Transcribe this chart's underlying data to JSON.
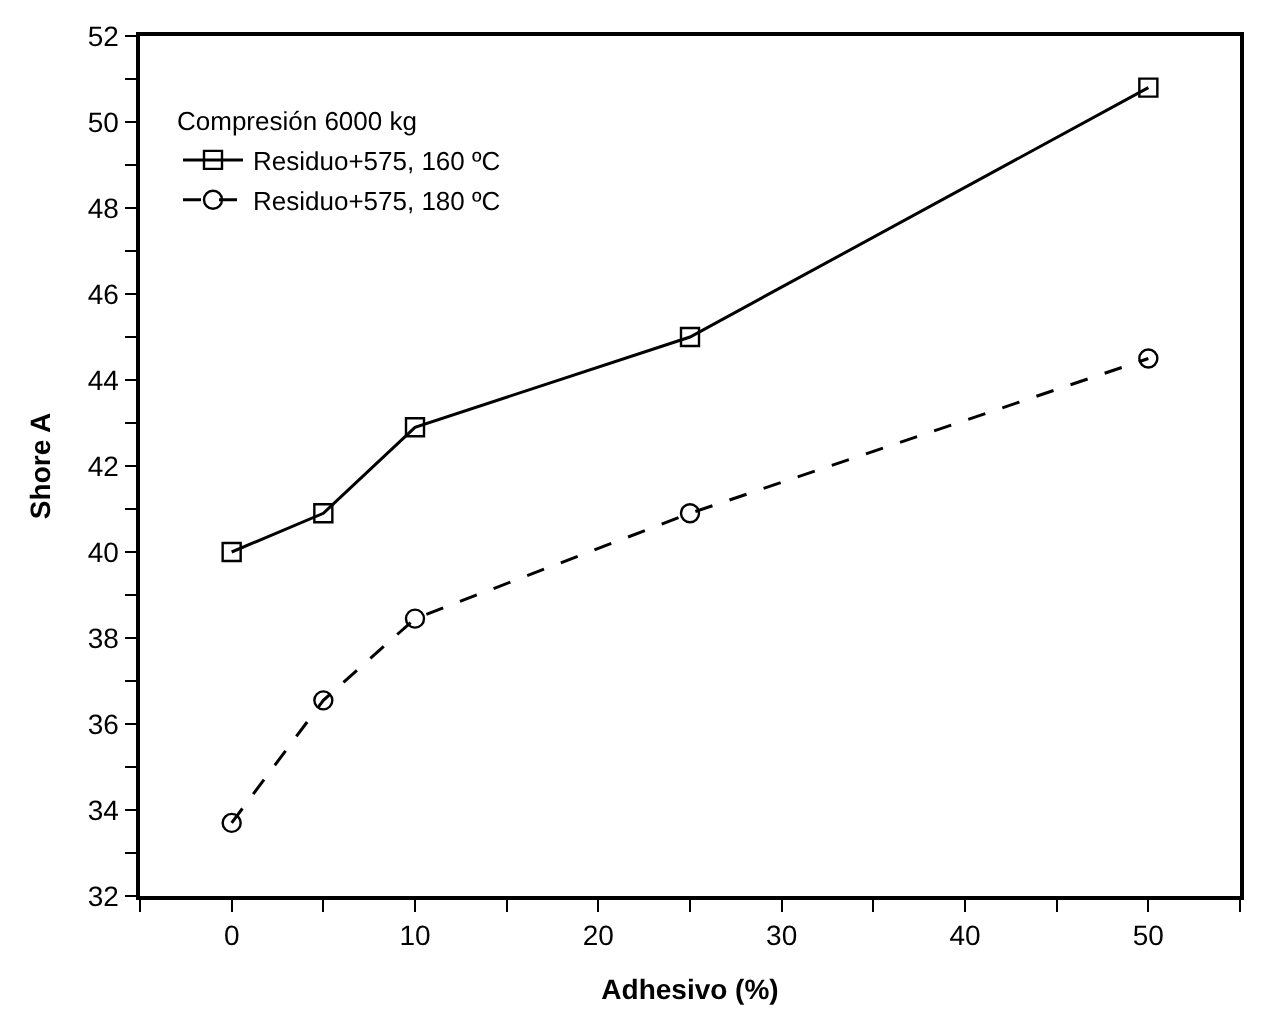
{
  "chart_data": {
    "type": "line",
    "xlabel": "Adhesivo (%)",
    "ylabel": "Shore A",
    "legend_title": "Compresión 6000 kg",
    "legend": "top left",
    "x": [
      0,
      5,
      10,
      25,
      50
    ],
    "series": [
      {
        "name": "Residuo+575, 160 ºC",
        "color": "#000000",
        "marker": "square",
        "line_style": "solid",
        "values": [
          40.0,
          40.9,
          42.9,
          45.0,
          50.8
        ]
      },
      {
        "name": "Residuo+575, 180 ºC",
        "color": "#000000",
        "marker": "circle",
        "line_style": "dashed",
        "values": [
          33.7,
          36.55,
          38.45,
          40.9,
          44.5
        ]
      }
    ],
    "xlim": [
      -5,
      55
    ],
    "xticks": [
      {
        "value": -5,
        "label": null
      },
      0,
      {
        "value": 5,
        "label": null
      },
      10,
      {
        "value": 15,
        "label": null
      },
      20,
      {
        "value": 25,
        "label": null
      },
      30,
      {
        "value": 35,
        "label": null
      },
      40,
      {
        "value": 45,
        "label": null
      },
      50,
      {
        "value": 55,
        "label": null
      }
    ],
    "ylim": [
      32,
      52
    ],
    "yticks": [
      32,
      {
        "value": 33,
        "label": null
      },
      34,
      {
        "value": 35,
        "label": null
      },
      36,
      {
        "value": 37,
        "label": null
      },
      38,
      {
        "value": 39,
        "label": null
      },
      40,
      {
        "value": 41,
        "label": null
      },
      42,
      {
        "value": 43,
        "label": null
      },
      44,
      {
        "value": 45,
        "label": null
      },
      46,
      {
        "value": 47,
        "label": null
      },
      48,
      {
        "value": 49,
        "label": null
      },
      50,
      {
        "value": 51,
        "label": null
      },
      52
    ]
  }
}
